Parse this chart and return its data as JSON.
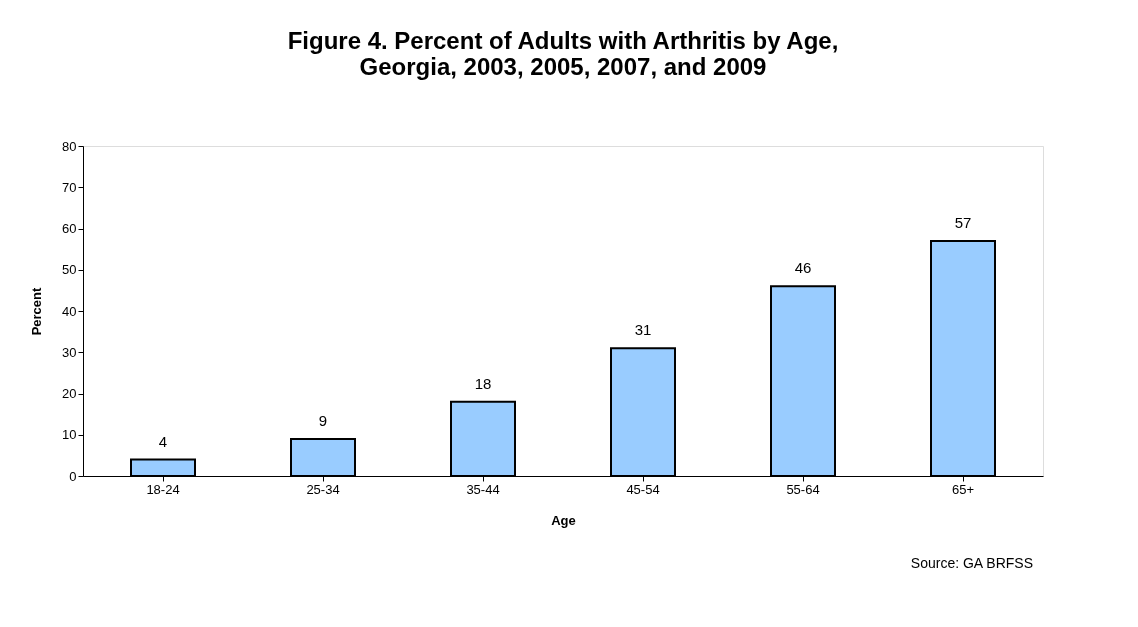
{
  "chart_data": {
    "type": "bar",
    "title": "Figure 4. Percent of Adults with Arthritis by Age,\nGeorgia, 2003, 2005, 2007, and 2009",
    "xlabel": "Age",
    "ylabel": "Percent",
    "categories": [
      "18-24",
      "25-34",
      "35-44",
      "45-54",
      "55-64",
      "65+"
    ],
    "values": [
      4,
      9,
      18,
      31,
      46,
      57
    ],
    "color": "#99ccff",
    "ylim": [
      0,
      80
    ],
    "yticks": [
      0,
      10,
      20,
      30,
      40,
      50,
      60,
      70,
      80
    ],
    "grid": false,
    "data_labels": true,
    "annotations": [
      "Source: GA BRFSS"
    ]
  }
}
